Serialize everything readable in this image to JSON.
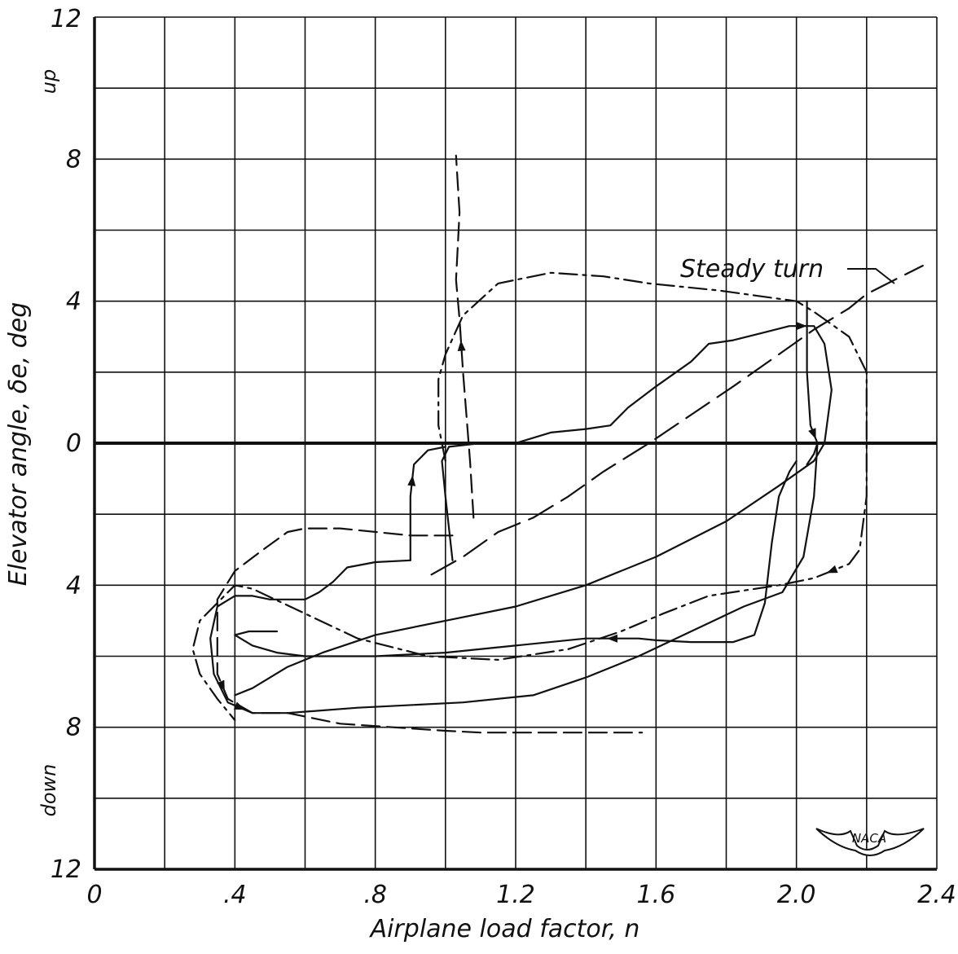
{
  "chart_data": {
    "type": "line",
    "xlabel": "Airplane load factor, n",
    "ylabel": "Elevator angle, δe, deg",
    "xlim": [
      0,
      2.4
    ],
    "ylim": [
      -12,
      12
    ],
    "grid": true,
    "x_tick_labels": [
      "0",
      ".4",
      ".8",
      "1.2",
      "1.6",
      "2.0",
      "2.4"
    ],
    "x_tick_values": [
      0,
      0.4,
      0.8,
      1.2,
      1.6,
      2.0,
      2.4
    ],
    "y_tick_labels": [
      "12",
      "8",
      "4",
      "0",
      "4",
      "8",
      "12"
    ],
    "y_tick_values": [
      12,
      8,
      4,
      0,
      -4,
      -8,
      -12
    ],
    "y_direction_labels": {
      "up": "up",
      "down": "down"
    },
    "annotation": "Steady turn",
    "logo_text": "NACA",
    "series": [
      {
        "style": "dashed",
        "points": [
          [
            1.08,
            -2.1
          ],
          [
            1.07,
            -0.5
          ],
          [
            1.05,
            2
          ],
          [
            1.04,
            3.5
          ],
          [
            1.03,
            4.6
          ],
          [
            1.04,
            6.5
          ],
          [
            1.03,
            8.1
          ]
        ]
      },
      {
        "style": "dash-dot",
        "points": [
          [
            1.0,
            -0.5
          ],
          [
            0.98,
            0.5
          ],
          [
            0.98,
            1.8
          ],
          [
            1.0,
            2.5
          ],
          [
            1.05,
            3.6
          ],
          [
            1.15,
            4.5
          ],
          [
            1.3,
            4.8
          ],
          [
            1.45,
            4.7
          ],
          [
            1.58,
            4.5
          ],
          [
            1.78,
            4.3
          ],
          [
            2.0,
            4.0
          ],
          [
            2.05,
            3.7
          ],
          [
            2.15,
            3.0
          ],
          [
            2.2,
            2.0
          ],
          [
            2.2,
            0
          ],
          [
            2.2,
            -1.5
          ],
          [
            2.18,
            -3.0
          ],
          [
            2.15,
            -3.4
          ],
          [
            2.05,
            -3.8
          ],
          [
            1.95,
            -4.0
          ],
          [
            1.75,
            -4.3
          ],
          [
            1.62,
            -4.8
          ],
          [
            1.5,
            -5.3
          ],
          [
            1.35,
            -5.8
          ],
          [
            1.15,
            -6.1
          ],
          [
            0.95,
            -6.0
          ],
          [
            0.75,
            -5.5
          ],
          [
            0.6,
            -4.8
          ],
          [
            0.45,
            -4.1
          ],
          [
            0.4,
            -4.0
          ],
          [
            0.35,
            -4.5
          ],
          [
            0.3,
            -5.0
          ],
          [
            0.28,
            -5.8
          ],
          [
            0.3,
            -6.5
          ],
          [
            0.35,
            -7.2
          ],
          [
            0.4,
            -7.8
          ]
        ]
      },
      {
        "style": "dashed",
        "points": [
          [
            1.02,
            -2.6
          ],
          [
            0.9,
            -2.6
          ],
          [
            0.7,
            -2.4
          ],
          [
            0.6,
            -2.4
          ],
          [
            0.55,
            -2.5
          ],
          [
            0.48,
            -3.0
          ],
          [
            0.4,
            -3.6
          ],
          [
            0.35,
            -4.4
          ],
          [
            0.35,
            -6.5
          ],
          [
            0.38,
            -7.2
          ],
          [
            0.45,
            -7.6
          ],
          [
            0.55,
            -7.6
          ],
          [
            0.7,
            -7.9
          ],
          [
            0.85,
            -8.0
          ],
          [
            1.0,
            -8.1
          ],
          [
            1.1,
            -8.15
          ],
          [
            1.4,
            -8.15
          ],
          [
            1.56,
            -8.15
          ]
        ]
      },
      {
        "style": "solid",
        "points": [
          [
            1.02,
            -3.3
          ],
          [
            1.0,
            -1.5
          ],
          [
            0.99,
            -0.5
          ],
          [
            1.01,
            -0.1
          ],
          [
            1.1,
            0
          ],
          [
            1.2,
            0
          ],
          [
            1.3,
            0.3
          ],
          [
            1.4,
            0.4
          ],
          [
            1.47,
            0.5
          ],
          [
            1.52,
            1.0
          ],
          [
            1.6,
            1.6
          ],
          [
            1.7,
            2.3
          ],
          [
            1.75,
            2.8
          ],
          [
            1.82,
            2.9
          ],
          [
            1.9,
            3.1
          ],
          [
            1.98,
            3.3
          ],
          [
            2.05,
            3.3
          ],
          [
            2.08,
            2.8
          ],
          [
            2.1,
            1.5
          ],
          [
            2.08,
            0
          ],
          [
            2.05,
            -0.5
          ],
          [
            1.95,
            -1.2
          ],
          [
            1.8,
            -2.2
          ],
          [
            1.6,
            -3.2
          ],
          [
            1.4,
            -4.0
          ],
          [
            1.2,
            -4.6
          ],
          [
            1.0,
            -5.0
          ],
          [
            0.8,
            -5.4
          ],
          [
            0.65,
            -5.9
          ],
          [
            0.55,
            -6.3
          ],
          [
            0.45,
            -6.9
          ],
          [
            0.4,
            -7.1
          ]
        ]
      },
      {
        "style": "solid",
        "points": [
          [
            2.0,
            -0.5
          ],
          [
            1.98,
            -0.8
          ],
          [
            1.95,
            -1.5
          ],
          [
            1.93,
            -2.8
          ],
          [
            1.91,
            -4.5
          ],
          [
            1.88,
            -5.4
          ],
          [
            1.82,
            -5.6
          ],
          [
            1.7,
            -5.6
          ],
          [
            1.6,
            -5.55
          ],
          [
            1.55,
            -5.5
          ],
          [
            1.4,
            -5.5
          ],
          [
            1.2,
            -5.7
          ],
          [
            1.0,
            -5.9
          ],
          [
            0.8,
            -6.0
          ],
          [
            0.6,
            -6.0
          ],
          [
            0.52,
            -5.9
          ],
          [
            0.45,
            -5.7
          ],
          [
            0.4,
            -5.4
          ],
          [
            0.44,
            -5.3
          ],
          [
            0.52,
            -5.3
          ]
        ]
      },
      {
        "style": "solid",
        "points": [
          [
            2.03,
            4.0
          ],
          [
            2.03,
            2.0
          ],
          [
            2.04,
            0.5
          ],
          [
            2.06,
            0
          ],
          [
            2.05,
            -0.3
          ],
          [
            2.03,
            -0.6
          ]
        ]
      },
      {
        "style": "solid",
        "points": [
          [
            0.9,
            -3.3
          ],
          [
            0.9,
            -1.5
          ],
          [
            0.91,
            -0.6
          ],
          [
            0.95,
            -0.2
          ],
          [
            1.0,
            -0.1
          ]
        ]
      },
      {
        "style": "solid",
        "points": [
          [
            0.9,
            -3.3
          ],
          [
            0.8,
            -3.35
          ],
          [
            0.72,
            -3.5
          ],
          [
            0.68,
            -3.9
          ],
          [
            0.64,
            -4.2
          ],
          [
            0.6,
            -4.4
          ],
          [
            0.5,
            -4.4
          ],
          [
            0.45,
            -4.3
          ],
          [
            0.4,
            -4.3
          ],
          [
            0.35,
            -4.6
          ],
          [
            0.33,
            -5.5
          ],
          [
            0.34,
            -6.5
          ],
          [
            0.38,
            -7.3
          ],
          [
            0.45,
            -7.6
          ],
          [
            0.55,
            -7.6
          ],
          [
            0.75,
            -7.45
          ],
          [
            1.05,
            -7.3
          ],
          [
            1.25,
            -7.1
          ],
          [
            1.4,
            -6.6
          ],
          [
            1.55,
            -6.0
          ],
          [
            1.7,
            -5.3
          ],
          [
            1.85,
            -4.6
          ],
          [
            1.96,
            -4.2
          ],
          [
            2.02,
            -3.2
          ],
          [
            2.05,
            -1.5
          ],
          [
            2.06,
            0
          ]
        ]
      },
      {
        "style": "long-dash",
        "points": [
          [
            0.96,
            -3.7
          ],
          [
            1.05,
            -3.2
          ],
          [
            1.15,
            -2.5
          ],
          [
            1.25,
            -2.1
          ],
          [
            1.35,
            -1.5
          ],
          [
            1.45,
            -0.8
          ],
          [
            1.58,
            0
          ],
          [
            1.7,
            0.8
          ],
          [
            1.82,
            1.6
          ],
          [
            1.95,
            2.5
          ],
          [
            2.05,
            3.2
          ],
          [
            2.15,
            3.8
          ],
          [
            2.2,
            4.2
          ],
          [
            2.36,
            5.0
          ]
        ]
      }
    ]
  }
}
